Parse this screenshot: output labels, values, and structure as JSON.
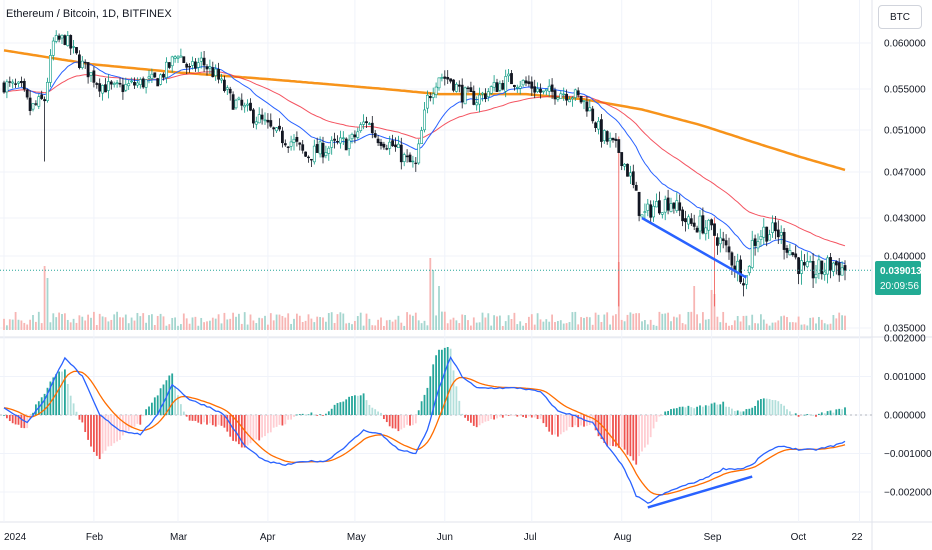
{
  "title": "Ethereum / Bitcoin, 1D, BITFINEX",
  "currency_button": "BTC",
  "colors": {
    "up": "#26a69a",
    "down": "#ef5350",
    "candle_up": "#089981",
    "candle_down": "#131722",
    "ema_fast": "#2962ff",
    "ema_slow": "#f23645",
    "ma_long": "#f7931a",
    "divergence": "#2962ff",
    "macd": "#2962ff",
    "signal": "#ff6d00",
    "price_label_bg": "#22ab94"
  },
  "price_label": {
    "price": "0.039013",
    "countdown": "20:09:56"
  },
  "chart_data": [
    {
      "type": "candlestick",
      "title": "Ethereum / Bitcoin, 1D, BITFINEX",
      "y_ticks": [
        "0.060000",
        "0.055000",
        "0.051000",
        "0.047000",
        "0.043000",
        "0.040000",
        "0.035000"
      ],
      "y_tick_values": [
        0.06,
        0.055,
        0.051,
        0.047,
        0.043,
        0.04,
        0.035
      ],
      "x_ticks": [
        "2024",
        "Feb",
        "Mar",
        "Apr",
        "May",
        "Jun",
        "Jul",
        "Aug",
        "Sep",
        "Oct",
        "22"
      ],
      "x_tick_days": [
        0,
        31,
        60,
        91,
        121,
        152,
        182,
        213,
        244,
        274,
        295
      ],
      "last_price": 0.039013,
      "close_path": [
        [
          0,
          0.0555
        ],
        [
          6,
          0.055
        ],
        [
          9,
          0.053
        ],
        [
          14,
          0.054
        ],
        [
          17,
          0.06
        ],
        [
          21,
          0.0605
        ],
        [
          26,
          0.058
        ],
        [
          33,
          0.0555
        ],
        [
          38,
          0.055
        ],
        [
          45,
          0.0555
        ],
        [
          53,
          0.056
        ],
        [
          57,
          0.0575
        ],
        [
          60,
          0.059
        ],
        [
          64,
          0.057
        ],
        [
          68,
          0.058
        ],
        [
          73,
          0.0565
        ],
        [
          78,
          0.054
        ],
        [
          83,
          0.053
        ],
        [
          88,
          0.052
        ],
        [
          94,
          0.0505
        ],
        [
          100,
          0.0498
        ],
        [
          104,
          0.0485
        ],
        [
          108,
          0.049
        ],
        [
          114,
          0.0495
        ],
        [
          120,
          0.05
        ],
        [
          125,
          0.052
        ],
        [
          128,
          0.0505
        ],
        [
          134,
          0.0495
        ],
        [
          139,
          0.048
        ],
        [
          142,
          0.0475
        ],
        [
          146,
          0.054
        ],
        [
          150,
          0.0565
        ],
        [
          154,
          0.056
        ],
        [
          158,
          0.0545
        ],
        [
          163,
          0.054
        ],
        [
          168,
          0.055
        ],
        [
          174,
          0.056
        ],
        [
          181,
          0.0555
        ],
        [
          186,
          0.0545
        ],
        [
          191,
          0.0548
        ],
        [
          196,
          0.0545
        ],
        [
          201,
          0.0535
        ],
        [
          206,
          0.0505
        ],
        [
          212,
          0.049
        ],
        [
          216,
          0.0465
        ],
        [
          220,
          0.043
        ],
        [
          224,
          0.044
        ],
        [
          230,
          0.0445
        ],
        [
          236,
          0.0425
        ],
        [
          241,
          0.0425
        ],
        [
          246,
          0.0415
        ],
        [
          252,
          0.0395
        ],
        [
          256,
          0.0385
        ],
        [
          258,
          0.041
        ],
        [
          262,
          0.042
        ],
        [
          267,
          0.0418
        ],
        [
          271,
          0.0405
        ],
        [
          276,
          0.0388
        ],
        [
          282,
          0.039
        ],
        [
          286,
          0.0395
        ],
        [
          290,
          0.039
        ]
      ],
      "ema_fast_period": 20,
      "ema_slow_period": 50,
      "ma_long_curve": [
        [
          0,
          0.0592
        ],
        [
          30,
          0.0577
        ],
        [
          60,
          0.0568
        ],
        [
          90,
          0.0561
        ],
        [
          120,
          0.0553
        ],
        [
          150,
          0.0545
        ],
        [
          180,
          0.0545
        ],
        [
          200,
          0.054
        ],
        [
          220,
          0.053
        ],
        [
          240,
          0.0515
        ],
        [
          260,
          0.0497
        ],
        [
          275,
          0.0484
        ],
        [
          290,
          0.0472
        ]
      ],
      "divergence_line": {
        "start": [
          220,
          0.043
        ],
        "end": [
          256,
          0.0385
        ]
      },
      "volume_spikes": [
        [
          14,
          0.8
        ],
        [
          15,
          0.65
        ],
        [
          147,
          0.9
        ],
        [
          148,
          0.75
        ],
        [
          150,
          0.55
        ],
        [
          212,
          0.85
        ],
        [
          238,
          0.55
        ],
        [
          244,
          0.5
        ],
        [
          245,
          0.45
        ]
      ]
    },
    {
      "type": "macd",
      "y_ticks": [
        "0.002000",
        "0.001000",
        "0.000000",
        "−0.001000",
        "−0.002000"
      ],
      "y_tick_values": [
        0.002,
        0.001,
        0.0,
        -0.001,
        -0.002
      ],
      "macd_path": [
        [
          0,
          0.0002
        ],
        [
          8,
          -0.0002
        ],
        [
          14,
          0.0004
        ],
        [
          21,
          0.0015
        ],
        [
          27,
          0.001
        ],
        [
          33,
          0.0
        ],
        [
          40,
          -0.0004
        ],
        [
          47,
          -0.0005
        ],
        [
          53,
          0.0
        ],
        [
          58,
          0.0008
        ],
        [
          64,
          0.0004
        ],
        [
          71,
          0.0002
        ],
        [
          76,
          0.0
        ],
        [
          83,
          -0.0008
        ],
        [
          90,
          -0.0012
        ],
        [
          97,
          -0.0013
        ],
        [
          104,
          -0.0012
        ],
        [
          111,
          -0.0012
        ],
        [
          118,
          -0.0008
        ],
        [
          124,
          -0.0004
        ],
        [
          130,
          -0.0005
        ],
        [
          136,
          -0.0009
        ],
        [
          142,
          -0.001
        ],
        [
          146,
          -0.0004
        ],
        [
          150,
          0.0007
        ],
        [
          154,
          0.0015
        ],
        [
          158,
          0.001
        ],
        [
          163,
          0.0007
        ],
        [
          170,
          0.0007
        ],
        [
          178,
          0.0007
        ],
        [
          185,
          0.0006
        ],
        [
          191,
          0.0001
        ],
        [
          196,
          0.0
        ],
        [
          203,
          -0.0002
        ],
        [
          208,
          -0.0008
        ],
        [
          214,
          -0.0014
        ],
        [
          218,
          -0.0021
        ],
        [
          222,
          -0.0023
        ],
        [
          226,
          -0.0021
        ],
        [
          232,
          -0.0019
        ],
        [
          240,
          -0.0017
        ],
        [
          248,
          -0.0014
        ],
        [
          254,
          -0.0014
        ],
        [
          258,
          -0.0013
        ],
        [
          262,
          -0.001
        ],
        [
          268,
          -0.0008
        ],
        [
          274,
          -0.0009
        ],
        [
          280,
          -0.0009
        ],
        [
          286,
          -0.0008
        ],
        [
          290,
          -0.0007
        ]
      ],
      "divergence_line": {
        "start": [
          222,
          -0.0024
        ],
        "end": [
          258,
          -0.0016
        ]
      }
    }
  ]
}
